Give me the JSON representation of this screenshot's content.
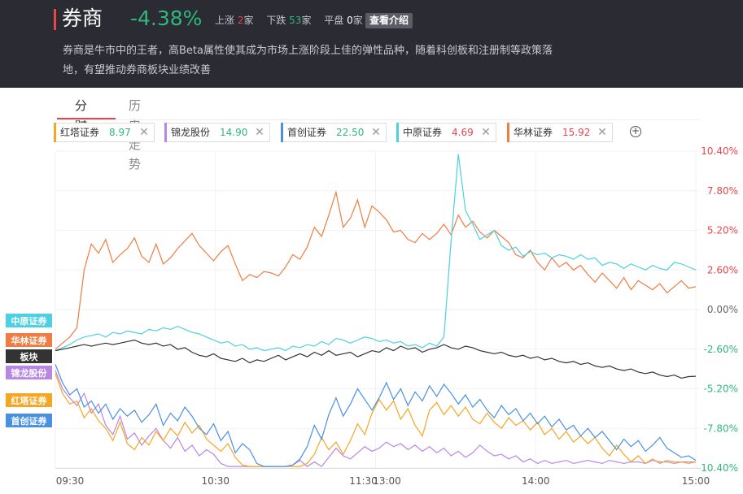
{
  "header": {
    "title": "券商",
    "change": "-4.38%",
    "up_label": "上涨",
    "up_count": "2",
    "up_unit": "家",
    "down_label": "下跌",
    "down_count": "53",
    "down_unit": "家",
    "flat_label": "平盘",
    "flat_count": "0",
    "flat_unit": "家",
    "intro_button": "查看介绍",
    "description": "券商是牛市中的王者，高Beta属性使其成为市场上涨阶段上佳的弹性品种，随着科创板和注册制等政策落地，有望推动券商板块业绩改善"
  },
  "tabs": [
    {
      "label": "分时",
      "active": true
    },
    {
      "label": "历史走势",
      "active": false
    }
  ],
  "compare_chips": [
    {
      "name": "红塔证券",
      "price": "8.97",
      "color": "#f5a623",
      "price_color": "#2fb87c"
    },
    {
      "name": "锦龙股份",
      "price": "14.90",
      "color": "#b986e4",
      "price_color": "#2fb87c"
    },
    {
      "name": "首创证券",
      "price": "22.50",
      "color": "#4a90e2",
      "price_color": "#2fb87c"
    },
    {
      "name": "中原证券",
      "price": "4.69",
      "color": "#4dd0e1",
      "price_color": "#e8454b"
    },
    {
      "name": "华林证券",
      "price": "15.92",
      "color": "#f07c42",
      "price_color": "#e8454b"
    }
  ],
  "add_button": "+",
  "close_symbol": "✕",
  "colors": {
    "up": "#e8454b",
    "down": "#2fb87c",
    "header_bg": "#2b2b33"
  },
  "chart_data": {
    "type": "line",
    "x_labels": [
      "09:30",
      "10:30",
      "11:30",
      "13:00",
      "14:00",
      "15:00"
    ],
    "ylim": [
      -10.4,
      10.4
    ],
    "y_ticks_up": [
      "10.40%",
      "7.80%",
      "5.20%",
      "2.60%"
    ],
    "y_tick_zero": "0.00%",
    "y_ticks_down": [
      "-2.60%",
      "-5.20%",
      "-7.80%",
      "-10.40%"
    ],
    "series": [
      {
        "name": "华林证券",
        "color": "#f07c42",
        "end_value": 1.5,
        "values": [
          -2.6,
          -2.2,
          -1.8,
          -1.2,
          2.6,
          4.3,
          3.7,
          4.6,
          3.1,
          3.6,
          4.0,
          4.7,
          3.5,
          3.1,
          4.3,
          3.0,
          3.4,
          4.0,
          4.5,
          5.0,
          4.2,
          3.7,
          3.2,
          3.8,
          4.2,
          3.0,
          1.9,
          2.3,
          2.1,
          2.5,
          2.4,
          2.2,
          2.8,
          3.6,
          3.3,
          4.1,
          5.4,
          4.8,
          6.2,
          7.7,
          5.4,
          6.0,
          7.2,
          5.4,
          6.8,
          6.4,
          5.9,
          5.1,
          5.2,
          4.6,
          4.4,
          5.0,
          4.6,
          5.0,
          5.6,
          4.9,
          6.2,
          5.4,
          5.8,
          5.1,
          4.7,
          5.2,
          4.8,
          4.4,
          3.6,
          3.4,
          3.9,
          3.1,
          2.6,
          3.4,
          2.8,
          3.1,
          2.6,
          2.9,
          2.3,
          1.8,
          2.4,
          1.9,
          1.4,
          2.1,
          1.3,
          1.9,
          1.6,
          1.3,
          1.7,
          1.1,
          1.5,
          1.9,
          1.4,
          1.5
        ]
      },
      {
        "name": "中原证券",
        "color": "#4dd0e1",
        "end_value": 2.6,
        "values": [
          -2.7,
          -2.5,
          -2.3,
          -2.0,
          -1.8,
          -1.7,
          -1.6,
          -1.8,
          -1.5,
          -1.6,
          -1.4,
          -1.5,
          -1.6,
          -1.3,
          -1.4,
          -1.2,
          -1.3,
          -1.1,
          -1.3,
          -1.5,
          -1.6,
          -1.8,
          -2.0,
          -2.2,
          -2.1,
          -2.4,
          -2.3,
          -2.6,
          -2.5,
          -2.7,
          -2.6,
          -2.5,
          -2.7,
          -2.4,
          -2.5,
          -2.3,
          -2.4,
          -2.1,
          -2.3,
          -1.9,
          -2.0,
          -2.2,
          -2.0,
          -1.8,
          -1.9,
          -2.1,
          -2.0,
          -2.2,
          -2.1,
          -2.4,
          -2.3,
          -2.5,
          -2.2,
          -2.4,
          -1.8,
          4.5,
          10.2,
          6.5,
          5.6,
          4.6,
          4.9,
          5.2,
          4.2,
          3.9,
          4.1,
          3.5,
          3.8,
          3.6,
          3.7,
          3.4,
          3.6,
          3.5,
          3.3,
          3.6,
          3.3,
          3.4,
          2.9,
          3.1,
          3.0,
          2.7,
          3.0,
          2.8,
          2.6,
          2.9,
          2.7,
          2.6,
          3.1,
          3.0,
          2.8,
          2.6
        ]
      },
      {
        "name": "板块",
        "color": "#333333",
        "end_value": -4.38,
        "values": [
          -2.7,
          -2.6,
          -2.5,
          -2.4,
          -2.3,
          -2.4,
          -2.3,
          -2.2,
          -2.3,
          -2.2,
          -2.1,
          -2.0,
          -2.2,
          -2.3,
          -2.2,
          -2.4,
          -2.3,
          -2.6,
          -2.5,
          -2.8,
          -3.0,
          -3.1,
          -2.9,
          -3.2,
          -3.3,
          -3.4,
          -3.2,
          -3.5,
          -3.3,
          -3.4,
          -3.2,
          -3.0,
          -3.3,
          -3.1,
          -2.9,
          -3.1,
          -2.8,
          -3.0,
          -2.7,
          -3.0,
          -2.9,
          -2.8,
          -3.1,
          -2.9,
          -2.7,
          -2.8,
          -2.5,
          -2.7,
          -2.4,
          -2.6,
          -2.5,
          -2.8,
          -2.6,
          -2.5,
          -2.3,
          -2.5,
          -2.6,
          -2.4,
          -2.5,
          -2.7,
          -2.8,
          -2.9,
          -2.8,
          -3.0,
          -3.1,
          -3.0,
          -3.2,
          -3.1,
          -3.3,
          -3.2,
          -3.4,
          -3.5,
          -3.4,
          -3.6,
          -3.5,
          -3.7,
          -3.8,
          -3.7,
          -3.9,
          -4.0,
          -3.9,
          -4.1,
          -4.2,
          -4.1,
          -4.3,
          -4.4,
          -4.3,
          -4.5,
          -4.4,
          -4.38
        ]
      },
      {
        "name": "锦龙股份",
        "color": "#b986e4",
        "end_value": -10.0,
        "values": [
          -4.0,
          -5.2,
          -5.8,
          -6.3,
          -5.5,
          -6.8,
          -6.2,
          -7.6,
          -8.2,
          -7.0,
          -8.5,
          -8.1,
          -8.9,
          -8.3,
          -7.8,
          -8.6,
          -9.1,
          -8.4,
          -9.3,
          -8.9,
          -9.6,
          -9.2,
          -9.5,
          -10.1,
          -10.3,
          -10.3,
          -10.3,
          -10.3,
          -10.3,
          -10.3,
          -10.3,
          -10.3,
          -10.3,
          -10.2,
          -9.9,
          -10.3,
          -10.0,
          -10.3,
          -9.7,
          -9.1,
          -9.6,
          -9.8,
          -9.4,
          -9.0,
          -9.3,
          -9.1,
          -8.7,
          -9.0,
          -8.8,
          -9.2,
          -8.9,
          -9.3,
          -9.0,
          -9.4,
          -9.1,
          -9.6,
          -9.3,
          -9.7,
          -9.4,
          -8.9,
          -9.3,
          -9.6,
          -9.5,
          -9.8,
          -9.6,
          -10.0,
          -9.8,
          -10.1,
          -9.9,
          -10.1,
          -10.0,
          -9.9,
          -10.1,
          -10.0,
          -9.9,
          -10.0,
          -10.1,
          -9.9,
          -10.0,
          -10.1,
          -10.0,
          -10.0,
          -10.1,
          -9.9,
          -10.0,
          -10.0,
          -10.1,
          -10.0,
          -10.0,
          -10.0
        ]
      },
      {
        "name": "红塔证券",
        "color": "#f5a623",
        "end_value": -10.0,
        "values": [
          -4.2,
          -5.5,
          -6.2,
          -6.0,
          -7.1,
          -6.5,
          -7.3,
          -7.8,
          -8.6,
          -7.4,
          -8.8,
          -9.2,
          -8.4,
          -8.9,
          -8.0,
          -8.6,
          -7.8,
          -8.3,
          -7.4,
          -8.1,
          -7.6,
          -8.5,
          -8.9,
          -9.3,
          -8.8,
          -9.7,
          -10.2,
          -10.3,
          -10.3,
          -10.3,
          -10.3,
          -10.3,
          -10.3,
          -10.3,
          -10.3,
          -10.1,
          -9.5,
          -8.4,
          -9.2,
          -8.7,
          -9.5,
          -8.6,
          -7.5,
          -8.2,
          -6.8,
          -5.9,
          -6.6,
          -6.0,
          -7.2,
          -6.5,
          -7.6,
          -8.3,
          -6.6,
          -6.1,
          -6.9,
          -6.3,
          -7.0,
          -6.4,
          -7.2,
          -7.5,
          -6.8,
          -7.4,
          -7.8,
          -7.1,
          -7.6,
          -7.3,
          -7.9,
          -7.4,
          -8.2,
          -7.8,
          -8.5,
          -8.0,
          -8.7,
          -8.3,
          -8.8,
          -8.4,
          -9.1,
          -9.6,
          -8.9,
          -9.5,
          -10.0,
          -9.6,
          -10.1,
          -9.8,
          -10.1,
          -9.9,
          -10.0,
          -10.0,
          -10.1,
          -10.0
        ]
      },
      {
        "name": "首创证券",
        "color": "#4a90e2",
        "end_value": -9.9,
        "values": [
          -3.6,
          -4.8,
          -5.6,
          -5.2,
          -6.4,
          -6.0,
          -6.8,
          -6.2,
          -7.2,
          -6.5,
          -7.0,
          -6.6,
          -7.4,
          -6.9,
          -6.2,
          -7.6,
          -6.8,
          -7.3,
          -6.4,
          -7.0,
          -7.8,
          -8.2,
          -7.5,
          -8.6,
          -8.0,
          -9.4,
          -8.8,
          -9.2,
          -10.1,
          -10.3,
          -10.3,
          -10.3,
          -10.3,
          -10.2,
          -9.8,
          -9.0,
          -7.6,
          -8.5,
          -6.9,
          -5.8,
          -7.0,
          -6.2,
          -5.2,
          -5.9,
          -6.6,
          -5.8,
          -4.8,
          -5.9,
          -5.2,
          -6.3,
          -5.4,
          -6.0,
          -5.0,
          -5.7,
          -4.9,
          -5.5,
          -6.2,
          -5.6,
          -6.4,
          -5.9,
          -6.6,
          -7.1,
          -6.3,
          -6.9,
          -6.5,
          -7.3,
          -6.8,
          -7.5,
          -7.0,
          -7.7,
          -7.2,
          -7.9,
          -7.6,
          -8.3,
          -7.8,
          -8.4,
          -8.0,
          -8.6,
          -9.2,
          -8.5,
          -9.0,
          -8.6,
          -9.3,
          -8.9,
          -8.4,
          -9.1,
          -9.4,
          -9.7,
          -9.6,
          -9.9
        ]
      }
    ],
    "legend_order": [
      "中原证券",
      "华林证券",
      "板块",
      "锦龙股份",
      "红塔证券",
      "首创证券"
    ],
    "grid": true
  }
}
